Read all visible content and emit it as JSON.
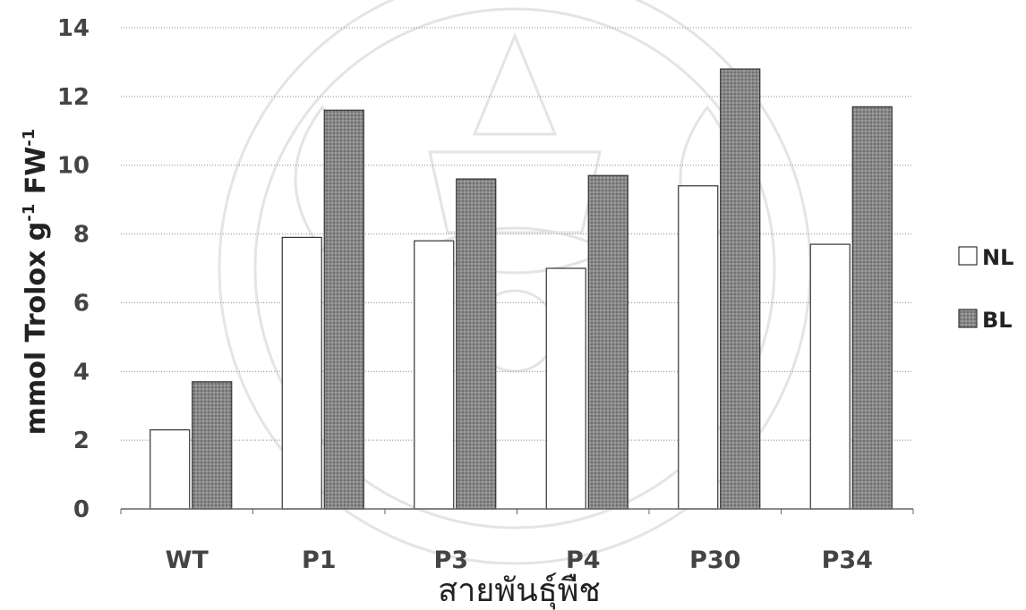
{
  "chart_data": {
    "type": "bar",
    "title": "",
    "xlabel": "สายพันธุ์พืช",
    "ylabel": "mmol Trolox g-1 FW-1",
    "ylabel_parts": {
      "a": "mmol Trolox g",
      "sup1": "-1",
      "b": " FW",
      "sup2": "-1"
    },
    "categories": [
      "WT",
      "P1",
      "P3",
      "P4",
      "P30",
      "P34"
    ],
    "series": [
      {
        "name": "NL",
        "values": [
          2.3,
          7.9,
          7.8,
          7.0,
          9.4,
          7.7
        ],
        "color": "#ffffff"
      },
      {
        "name": "BL",
        "values": [
          3.7,
          11.6,
          9.6,
          9.7,
          12.8,
          11.7
        ],
        "color": "#7a7a7a"
      }
    ],
    "ylim": [
      0,
      14
    ],
    "yticks": [
      0,
      2,
      4,
      6,
      8,
      10,
      12,
      14
    ],
    "grid": true,
    "legend": "right"
  }
}
